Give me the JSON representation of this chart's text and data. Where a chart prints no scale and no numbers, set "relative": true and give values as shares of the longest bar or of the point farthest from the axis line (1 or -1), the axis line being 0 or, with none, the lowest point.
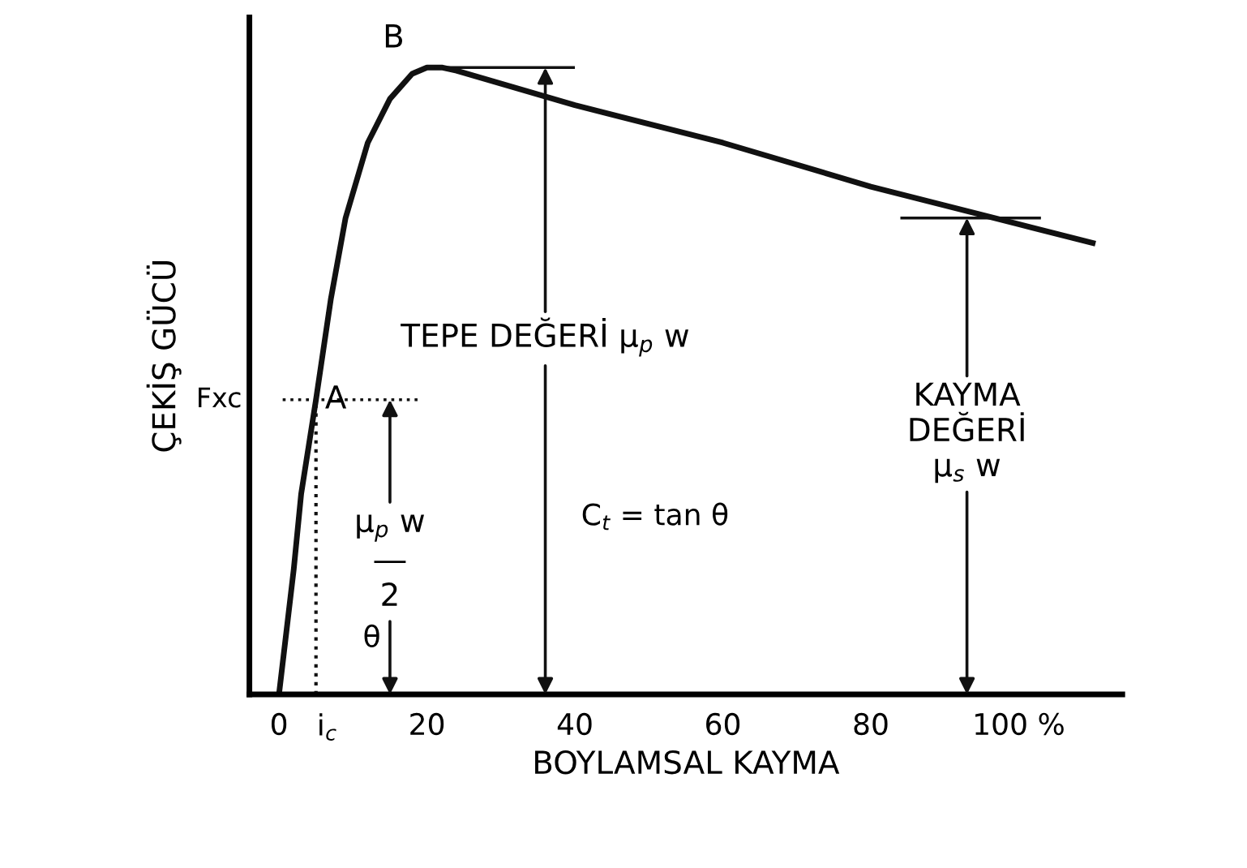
{
  "chart_data": {
    "type": "line",
    "relative": true,
    "xlabel": "BOYLAMSAL KAYMA",
    "ylabel": "ÇEKİŞ GÜCÜ",
    "x": [
      0,
      1,
      2,
      3,
      5,
      7,
      9,
      12,
      15,
      18,
      20,
      22,
      24,
      40,
      60,
      80,
      100,
      110
    ],
    "series": [
      {
        "color": "#111111",
        "values": [
          0,
          0.1,
          0.2,
          0.32,
          0.47,
          0.63,
          0.76,
          0.88,
          0.95,
          0.99,
          1.0,
          1.0,
          0.995,
          0.94,
          0.88,
          0.81,
          0.75,
          0.72
        ]
      }
    ],
    "xlim": [
      -4,
      114
    ],
    "xticks": [
      0,
      20,
      40,
      60,
      80,
      {
        "value": 100,
        "label": "100 %"
      }
    ],
    "grid": false,
    "legend": false,
    "marker": "none",
    "line_style": "solid",
    "ref_lines": [
      {
        "axis": "y",
        "value": 0.47,
        "label": "Fxc",
        "line_style": "dotted",
        "color": "#111111"
      },
      {
        "axis": "x",
        "value": 5,
        "label": "i$_{c}$",
        "line_style": "dotted",
        "color": "#111111"
      },
      {
        "axis": "y",
        "value": 1.0,
        "line_style": "solid",
        "color": "#111111"
      },
      {
        "axis": "y",
        "value": 0.76,
        "line_style": "solid",
        "color": "#111111"
      }
    ],
    "annotations": [
      {
        "text": "A",
        "x": 5,
        "y": 0.47
      },
      {
        "text": "B",
        "x": 20,
        "y": 1.0
      },
      {
        "text": "TEPE DEĞERİ μ$_{p}$ w",
        "x": 36,
        "y": 1.0
      },
      "μ$_{p}$ w\n―\n2",
      {
        "text": "KAYMA\nDEĞERİ\nμ$_{s}$ w",
        "x": 93,
        "y": 0.76
      },
      "C$_{t}$ = tan θ",
      "θ"
    ]
  }
}
